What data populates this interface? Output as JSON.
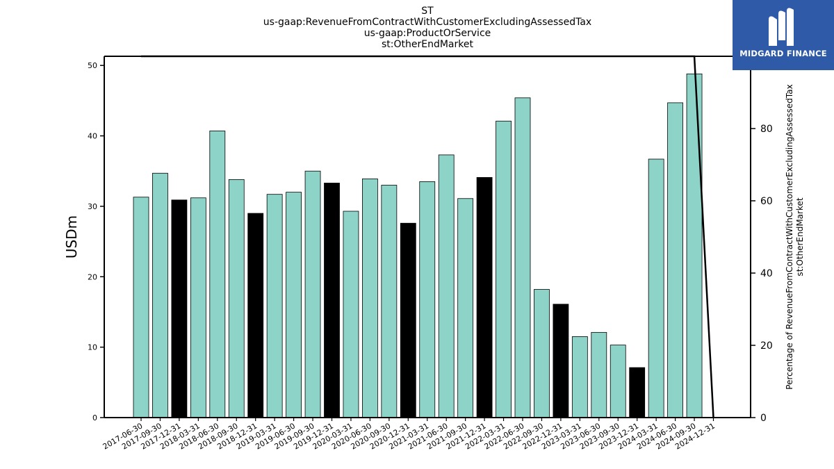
{
  "logo": {
    "text": "MIDGARD FINANCE"
  },
  "chart_data": {
    "type": "bar",
    "title_lines": [
      "ST",
      "us-gaap:RevenueFromContractWithCustomerExcludingAssessedTax",
      "us-gaap:ProductOrService",
      "st:OtherEndMarket"
    ],
    "ylabel": "USDm",
    "y2label_lines": [
      "Percentage of RevenueFromContractWithCustomerExcludingAssessedTax",
      "st:OtherEndMarket"
    ],
    "ylim": [
      0,
      51.3
    ],
    "y_ticks": [
      0,
      10,
      20,
      30,
      40,
      50
    ],
    "y2lim": [
      0,
      100
    ],
    "y2_ticks": [
      0,
      20,
      40,
      60,
      80
    ],
    "colors": {
      "bar": "#8dd3c7",
      "q4_bar": "#000000",
      "line": "#000000"
    },
    "categories": [
      "2017-06-30",
      "2017-09-30",
      "2017-12-31",
      "2018-03-31",
      "2018-06-30",
      "2018-09-30",
      "2018-12-31",
      "2019-03-31",
      "2019-06-30",
      "2019-09-30",
      "2019-12-31",
      "2020-03-31",
      "2020-06-30",
      "2020-09-30",
      "2020-12-31",
      "2021-03-31",
      "2021-06-30",
      "2021-09-30",
      "2021-12-31",
      "2022-03-31",
      "2022-06-30",
      "2022-09-30",
      "2022-12-31",
      "2023-03-31",
      "2023-06-30",
      "2023-09-30",
      "2023-12-31",
      "2024-03-31",
      "2024-06-30",
      "2024-09-30",
      "2024-12-31"
    ],
    "values": [
      31.3,
      34.7,
      30.9,
      31.2,
      40.7,
      33.8,
      29.0,
      31.7,
      32.0,
      35.0,
      33.3,
      29.3,
      33.9,
      33.0,
      27.6,
      33.5,
      37.3,
      31.1,
      34.1,
      42.1,
      45.4,
      18.2,
      16.1,
      11.5,
      12.1,
      10.3,
      7.1,
      36.7,
      44.7,
      48.8,
      null
    ],
    "highlight": [
      false,
      false,
      true,
      false,
      false,
      false,
      true,
      false,
      false,
      false,
      true,
      false,
      false,
      false,
      true,
      false,
      false,
      false,
      true,
      false,
      false,
      false,
      true,
      false,
      false,
      false,
      true,
      false,
      false,
      false,
      false
    ],
    "series": [
      {
        "values": [
          100,
          100,
          100,
          100,
          100,
          100,
          100,
          100,
          100,
          100,
          100,
          100,
          100,
          100,
          100,
          100,
          100,
          100,
          100,
          100,
          100,
          100,
          100,
          100,
          100,
          100,
          100,
          100,
          100,
          100,
          0
        ]
      }
    ]
  }
}
